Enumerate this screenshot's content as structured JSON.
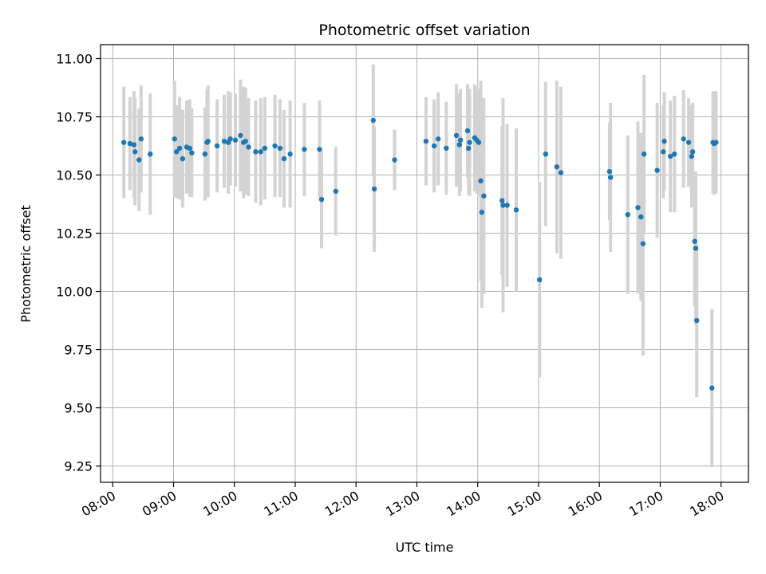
{
  "chart_data": {
    "type": "scatter",
    "title": "Photometric offset variation",
    "xlabel": "UTC time",
    "ylabel": "Photometric offset",
    "xlim": [
      "07:48",
      "18:27"
    ],
    "ylim": [
      9.18,
      11.06
    ],
    "xticks": [
      "08:00",
      "09:00",
      "10:00",
      "11:00",
      "12:00",
      "13:00",
      "14:00",
      "15:00",
      "16:00",
      "17:00",
      "18:00"
    ],
    "yticks": [
      "9.25",
      "9.50",
      "9.75",
      "10.00",
      "10.25",
      "10.50",
      "10.75",
      "11.00"
    ],
    "grid": true,
    "point_color": "#1f77b4",
    "errorbar_color": "#d3d3d3",
    "series": [
      {
        "x": [
          "08:11",
          "08:17",
          "08:21",
          "08:22",
          "08:26",
          "08:28",
          "08:37",
          "09:01",
          "09:03",
          "09:06",
          "09:09",
          "09:13",
          "09:16",
          "09:18",
          "09:31",
          "09:33",
          "09:34",
          "09:43",
          "09:50",
          "09:54",
          "09:56",
          "10:01",
          "10:06",
          "10:09",
          "10:11",
          "10:14",
          "10:21",
          "10:26",
          "10:30",
          "10:40",
          "10:45",
          "10:49",
          "10:55",
          "11:09",
          "11:24",
          "11:26",
          "11:40",
          "12:17",
          "12:18",
          "12:38",
          "13:09",
          "13:17",
          "13:21",
          "13:29",
          "13:39",
          "13:42",
          "13:43",
          "13:50",
          "13:51",
          "13:52",
          "13:57",
          "13:59",
          "14:01",
          "14:03",
          "14:04",
          "14:06",
          "14:24",
          "14:25",
          "14:29",
          "14:38",
          "15:01",
          "15:07",
          "15:18",
          "15:22",
          "16:10",
          "16:11",
          "16:28",
          "16:38",
          "16:41",
          "16:43",
          "16:44",
          "16:57",
          "17:03",
          "17:04",
          "17:10",
          "17:14",
          "17:23",
          "17:28",
          "17:31",
          "17:32",
          "17:34",
          "17:35",
          "17:36",
          "17:51",
          "17:52",
          "17:53",
          "17:55"
        ],
        "y": [
          10.64,
          10.635,
          10.63,
          10.6,
          10.565,
          10.655,
          10.59,
          10.655,
          10.6,
          10.615,
          10.57,
          10.62,
          10.615,
          10.595,
          10.59,
          10.64,
          10.645,
          10.625,
          10.645,
          10.64,
          10.655,
          10.65,
          10.67,
          10.64,
          10.645,
          10.62,
          10.6,
          10.6,
          10.615,
          10.625,
          10.615,
          10.57,
          10.59,
          10.61,
          10.61,
          10.395,
          10.43,
          10.735,
          10.44,
          10.565,
          10.645,
          10.625,
          10.655,
          10.615,
          10.67,
          10.63,
          10.65,
          10.69,
          10.615,
          10.64,
          10.66,
          10.65,
          10.64,
          10.475,
          10.34,
          10.41,
          10.39,
          10.37,
          10.37,
          10.35,
          10.05,
          10.59,
          10.535,
          10.51,
          10.515,
          10.49,
          10.33,
          10.36,
          10.32,
          10.205,
          10.59,
          10.52,
          10.6,
          10.645,
          10.58,
          10.59,
          10.655,
          10.64,
          10.58,
          10.6,
          10.215,
          10.185,
          9.875,
          9.585,
          10.64,
          10.635,
          10.64
        ],
        "err": [
          0.24,
          0.2,
          0.23,
          0.23,
          0.22,
          0.23,
          0.26,
          0.25,
          0.2,
          0.22,
          0.21,
          0.2,
          0.21,
          0.19,
          0.2,
          0.23,
          0.24,
          0.2,
          0.2,
          0.22,
          0.2,
          0.2,
          0.24,
          0.24,
          0.23,
          0.21,
          0.22,
          0.23,
          0.22,
          0.22,
          0.21,
          0.21,
          0.23,
          0.2,
          0.21,
          0.21,
          0.19,
          0.24,
          0.27,
          0.13,
          0.19,
          0.2,
          0.2,
          0.2,
          0.22,
          0.22,
          0.22,
          0.2,
          0.2,
          0.23,
          0.23,
          0.23,
          0.23,
          0.43,
          0.41,
          0.42,
          0.32,
          0.46,
          0.35,
          0.35,
          0.42,
          0.31,
          0.37,
          0.37,
          0.21,
          0.32,
          0.34,
          0.37,
          0.36,
          0.48,
          0.34,
          0.29,
          0.2,
          0.21,
          0.24,
          0.25,
          0.21,
          0.19,
          0.22,
          0.21,
          0.28,
          0.33,
          0.33,
          0.34,
          0.22,
          0.22,
          0.22
        ]
      }
    ]
  }
}
